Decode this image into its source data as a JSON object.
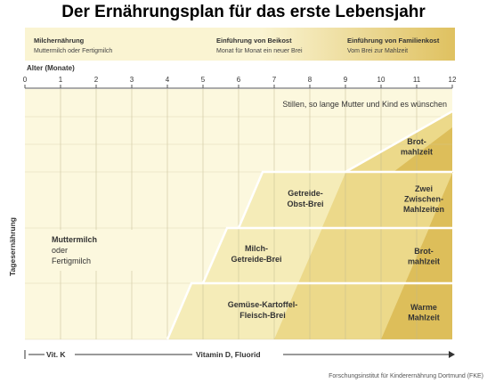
{
  "title": "Der Ernährungsplan für das erste Lebensjahr",
  "colors": {
    "bg_light": "#fcf8de",
    "band_pale": "#f5ecb8",
    "band_mid": "#ecd98a",
    "band_dark": "#ddbe5a",
    "header_light": "#faf4d2",
    "header_dark": "#dfc160",
    "grid": "#ffffff"
  },
  "header_phases": [
    {
      "title": "Milchernährung",
      "subtitle": "Muttermilch oder Fertigmilch"
    },
    {
      "title": "Einführung von Beikost",
      "subtitle": "Monat für Monat ein neuer Brei"
    },
    {
      "title": "Einführung von Familienkost",
      "subtitle": "Vom Brei zur Mahlzeit"
    }
  ],
  "chart_data": {
    "type": "area",
    "xlabel": "Alter (Monate)",
    "ylabel": "Tagesernährung",
    "xlim": [
      0,
      12
    ],
    "x_ticks": [
      "0",
      "1",
      "2",
      "3",
      "4",
      "5",
      "6",
      "7",
      "8",
      "9",
      "10",
      "11",
      "12"
    ],
    "grid": true,
    "note": "Stillen, so lange Mutter und Kind es wünschen",
    "milk_label": [
      "Muttermilch",
      "oder",
      "Fertigmilch"
    ],
    "meal_bands": [
      {
        "name": "Gemüse-Kartoffel-Fleisch-Brei",
        "lines": [
          "Gemüse-Kartoffel-",
          "Fleisch-Brei"
        ],
        "start_month": 4,
        "end_label_lines": [
          "Warme",
          "Mahlzeit"
        ]
      },
      {
        "name": "Milch-Getreide-Brei",
        "lines": [
          "Milch-",
          "Getreide-Brei"
        ],
        "start_month": 5,
        "end_label_lines": [
          "Brot-",
          "mahlzeit"
        ]
      },
      {
        "name": "Getreide-Obst-Brei",
        "lines": [
          "Getreide-",
          "Obst-Brei"
        ],
        "start_month": 6,
        "end_label_lines": [
          "Zwei",
          "Zwischen-",
          "Mahlzeiten"
        ]
      },
      {
        "name": "Brotmahlzeit",
        "lines": [],
        "start_month": 9,
        "end_label_lines": [
          "Brot-",
          "mahlzeit"
        ]
      }
    ],
    "transition_months": [
      7,
      10
    ],
    "vitamins": [
      {
        "label": "Vit. K",
        "from_month": 0,
        "to_month": 1
      },
      {
        "label": "Vitamin D, Fluorid",
        "from_month": 1,
        "to_month": 12
      }
    ]
  },
  "source": "Forschungsinstitut für Kinderernährung Dortmund (FKE)"
}
